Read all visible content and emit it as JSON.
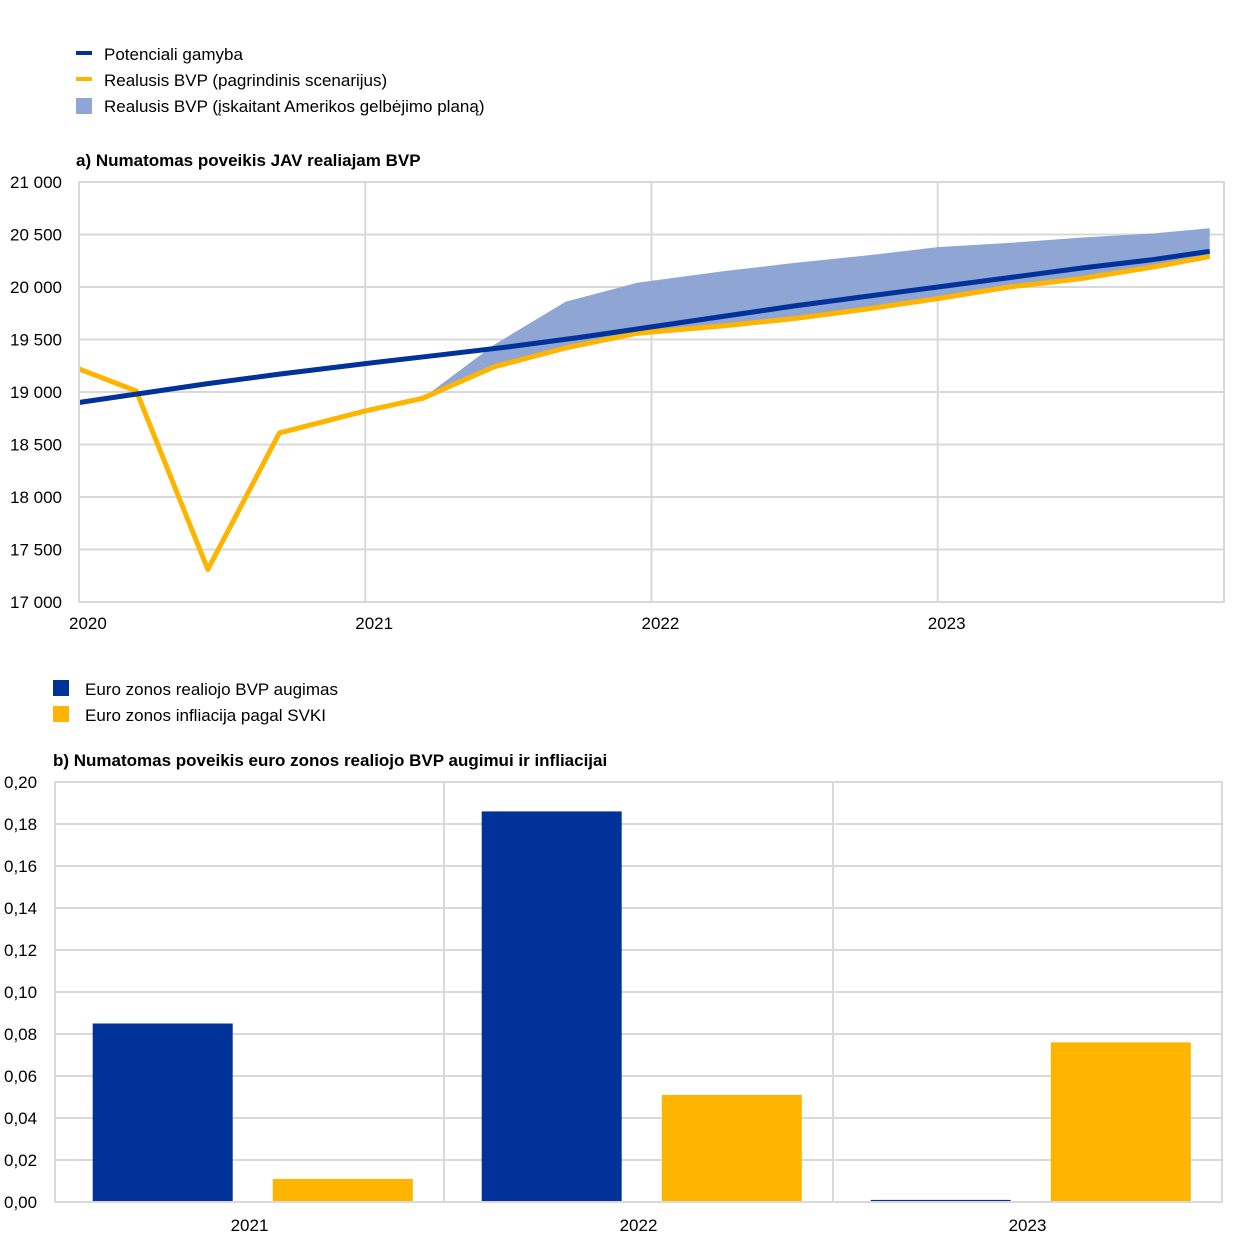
{
  "chart_data": [
    {
      "type": "line",
      "title": "a) Numatomas poveikis JAV realiajam BVP",
      "legend": [
        {
          "label": "Potenciali gamyba",
          "kind": "line",
          "color": "#003299"
        },
        {
          "label": "Realusis BVP (pagrindinis scenarijus)",
          "kind": "line",
          "color": "#FFB400"
        },
        {
          "label": "Realusis BVP (įskaitant Amerikos gelbėjimo planą)",
          "kind": "area",
          "color": "#8FA6D4"
        }
      ],
      "legend_placement": "top-left",
      "ylim": [
        17000,
        21000
      ],
      "y_ticks": [
        {
          "value": 21000,
          "label": "21 000"
        },
        {
          "value": 20500,
          "label": "20 500"
        },
        {
          "value": 20000,
          "label": "20 000"
        },
        {
          "value": 19500,
          "label": "19 500"
        },
        {
          "value": 19000,
          "label": "19 000"
        },
        {
          "value": 18500,
          "label": "18 500"
        },
        {
          "value": 18000,
          "label": "18 000"
        },
        {
          "value": 17500,
          "label": "17 500"
        },
        {
          "value": 17000,
          "label": "17 000"
        }
      ],
      "xlim": [
        2020.0,
        2024.0
      ],
      "x_ticks": [
        {
          "value": 2020,
          "label": "2020"
        },
        {
          "value": 2021,
          "label": "2021"
        },
        {
          "value": 2022,
          "label": "2022"
        },
        {
          "value": 2023,
          "label": "2023"
        }
      ],
      "grid": true,
      "series": [
        {
          "name": "Potenciali gamyba",
          "color": "#003299",
          "x": [
            2020.0,
            2020.2,
            2020.45,
            2020.7,
            2021.0,
            2021.25,
            2021.5,
            2021.75,
            2022.0,
            2022.25,
            2022.5,
            2022.75,
            2023.0,
            2023.25,
            2023.5,
            2023.75,
            2023.95
          ],
          "y": [
            18900,
            18980,
            19080,
            19170,
            19270,
            19350,
            19430,
            19520,
            19620,
            19720,
            19820,
            19910,
            20000,
            20090,
            20180,
            20260,
            20340
          ]
        },
        {
          "name": "Realusis BVP (pagrindinis scenarijus)",
          "color": "#FFB400",
          "x": [
            2020.0,
            2020.2,
            2020.45,
            2020.7,
            2021.0,
            2021.2,
            2021.45,
            2021.7,
            2021.95,
            2022.25,
            2022.5,
            2022.75,
            2023.0,
            2023.25,
            2023.5,
            2023.75,
            2023.95
          ],
          "y": [
            19220,
            19010,
            17310,
            18610,
            18820,
            18940,
            19240,
            19420,
            19560,
            19630,
            19700,
            19790,
            19890,
            20000,
            20080,
            20190,
            20290
          ]
        },
        {
          "name": "Realusis BVP (įskaitant Amerikos gelbėjimo planą)",
          "color": "#8FA6D4",
          "kind": "band",
          "x": [
            2021.2,
            2021.45,
            2021.7,
            2021.95,
            2022.25,
            2022.5,
            2022.75,
            2023.0,
            2023.25,
            2023.5,
            2023.75,
            2023.95
          ],
          "y_upper": [
            18940,
            19450,
            19860,
            20040,
            20150,
            20230,
            20300,
            20380,
            20420,
            20470,
            20510,
            20560
          ],
          "y_lower": [
            18940,
            19240,
            19420,
            19560,
            19630,
            19700,
            19790,
            19890,
            20000,
            20080,
            20190,
            20290
          ]
        }
      ]
    },
    {
      "type": "bar",
      "title": "b) Numatomas poveikis euro zonos realiojo BVP augimui ir infliacijai",
      "legend_placement": "top-left",
      "categories": [
        "2021",
        "2022",
        "2023"
      ],
      "ylim": [
        0,
        0.2
      ],
      "y_ticks": [
        {
          "value": 0.2,
          "label": "0,20"
        },
        {
          "value": 0.18,
          "label": "0,18"
        },
        {
          "value": 0.16,
          "label": "0,16"
        },
        {
          "value": 0.14,
          "label": "0,14"
        },
        {
          "value": 0.12,
          "label": "0,12"
        },
        {
          "value": 0.1,
          "label": "0,10"
        },
        {
          "value": 0.08,
          "label": "0,08"
        },
        {
          "value": 0.06,
          "label": "0,06"
        },
        {
          "value": 0.04,
          "label": "0,04"
        },
        {
          "value": 0.02,
          "label": "0,02"
        },
        {
          "value": 0.0,
          "label": "0,00"
        }
      ],
      "grid": true,
      "series": [
        {
          "name": "Euro zonos realiojo BVP augimas",
          "color": "#003299",
          "values": [
            0.085,
            0.186,
            0.001
          ]
        },
        {
          "name": "Euro zonos infliacija pagal SVKI",
          "color": "#FFB400",
          "values": [
            0.011,
            0.051,
            0.076
          ]
        }
      ]
    }
  ]
}
